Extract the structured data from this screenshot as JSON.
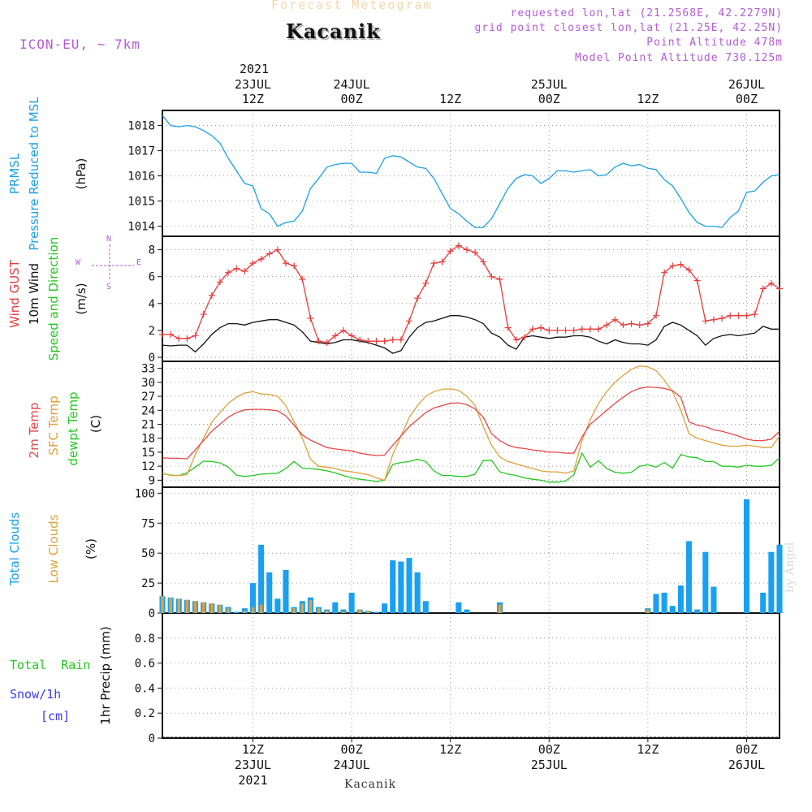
{
  "header": {
    "forecast_label": "Forecast Meteogram",
    "location_title": "Kacanik",
    "model_label": "ICON-EU, ~ 7km",
    "requested": "requested lon,lat (21.2568E, 42.2279N)",
    "grid_point": "grid point closest lon,lat (21.25E, 42.25N)",
    "point_altitude": "Point Altitude 478m",
    "model_altitude": "Model Point Altitude 730.125m"
  },
  "time_axis": {
    "top_year": "2021",
    "labels": [
      {
        "t": 12,
        "top": "23JUL",
        "hour": "12Z",
        "bottom": "23JUL",
        "year": "2021"
      },
      {
        "t": 24,
        "top": "24JUL",
        "hour": "00Z",
        "bottom": "24JUL"
      },
      {
        "t": 36,
        "top": "",
        "hour": "12Z",
        "bottom": ""
      },
      {
        "t": 48,
        "top": "25JUL",
        "hour": "00Z",
        "bottom": "25JUL"
      },
      {
        "t": 60,
        "top": "",
        "hour": "12Z",
        "bottom": ""
      },
      {
        "t": 72,
        "top": "26JUL",
        "hour": "00Z",
        "bottom": "26JUL"
      }
    ],
    "range_hours": [
      1,
      76
    ]
  },
  "footer_location": "Kacanik",
  "byline": "by Angel",
  "colors": {
    "pressure": "#1aa0e6",
    "gust": "#e83c3c",
    "wind": "#111111",
    "temp2m": "#e84848",
    "sfc": "#e0a038",
    "dew": "#22c81e",
    "total_clouds": "#1aa0f0",
    "low_clouds": "#e0a038",
    "rain": "#22c81e",
    "snow": "#3b3bf0",
    "compass": "#b45ad8"
  },
  "chart_data": [
    {
      "type": "line",
      "panel": "pressure",
      "labels": {
        "l1": "PRMSL",
        "l2": "Pressure Reduced to MSL",
        "unit": "(hPa)"
      },
      "ylim": [
        1013.6,
        1018.6
      ],
      "yticks": [
        1014,
        1015,
        1016,
        1017,
        1018
      ],
      "grid": true,
      "x": [
        1,
        2,
        3,
        4,
        5,
        6,
        7,
        8,
        9,
        10,
        11,
        12,
        13,
        14,
        15,
        16,
        17,
        18,
        19,
        20,
        21,
        22,
        23,
        24,
        25,
        26,
        27,
        28,
        29,
        30,
        31,
        32,
        33,
        34,
        35,
        36,
        37,
        38,
        39,
        40,
        41,
        42,
        43,
        44,
        45,
        46,
        47,
        48,
        49,
        50,
        51,
        52,
        53,
        54,
        55,
        56,
        57,
        58,
        59,
        60,
        61,
        62,
        63,
        64,
        65,
        66,
        67,
        68,
        69,
        70,
        71,
        72,
        73,
        74,
        75,
        76
      ],
      "series": [
        {
          "name": "PRMSL",
          "values": [
            1018.4,
            1018.0,
            1017.95,
            1018.0,
            1017.95,
            1017.8,
            1017.6,
            1017.3,
            1016.7,
            1016.2,
            1015.7,
            1015.6,
            1014.7,
            1014.5,
            1014.0,
            1014.15,
            1014.2,
            1014.6,
            1015.5,
            1015.9,
            1016.35,
            1016.45,
            1016.5,
            1016.5,
            1016.15,
            1016.15,
            1016.1,
            1016.7,
            1016.8,
            1016.75,
            1016.55,
            1016.35,
            1016.3,
            1015.9,
            1015.3,
            1014.7,
            1014.5,
            1014.2,
            1013.95,
            1013.95,
            1014.3,
            1014.9,
            1015.5,
            1015.9,
            1016.05,
            1016.0,
            1015.7,
            1015.9,
            1016.2,
            1016.2,
            1016.15,
            1016.2,
            1016.25,
            1016.0,
            1016.05,
            1016.35,
            1016.5,
            1016.4,
            1016.45,
            1016.3,
            1016.25,
            1015.85,
            1015.6,
            1015.1,
            1014.55,
            1014.15,
            1014.0,
            1014.0,
            1013.95,
            1014.35,
            1014.6,
            1015.35,
            1015.4,
            1015.75,
            1016.0,
            1016.05
          ]
        }
      ]
    },
    {
      "type": "line",
      "panel": "wind",
      "labels": {
        "gust": "Wind GUST",
        "wind": "10m Wind",
        "dir": "Speed and Direction",
        "unit": "(m/s)"
      },
      "compass": {
        "n": "N",
        "s": "S",
        "w": "W",
        "e": "E"
      },
      "ylim": [
        -0.3,
        9
      ],
      "yticks": [
        0,
        2,
        4,
        6,
        8
      ],
      "grid": true,
      "x": [
        1,
        2,
        3,
        4,
        5,
        6,
        7,
        8,
        9,
        10,
        11,
        12,
        13,
        14,
        15,
        16,
        17,
        18,
        19,
        20,
        21,
        22,
        23,
        24,
        25,
        26,
        27,
        28,
        29,
        30,
        31,
        32,
        33,
        34,
        35,
        36,
        37,
        38,
        39,
        40,
        41,
        42,
        43,
        44,
        45,
        46,
        47,
        48,
        49,
        50,
        51,
        52,
        53,
        54,
        55,
        56,
        57,
        58,
        59,
        60,
        61,
        62,
        63,
        64,
        65,
        66,
        67,
        68,
        69,
        70,
        71,
        72,
        73,
        74,
        75,
        76
      ],
      "series": [
        {
          "name": "Wind GUST",
          "values": [
            1.7,
            1.7,
            1.4,
            1.4,
            1.6,
            3.2,
            4.6,
            5.6,
            6.3,
            6.6,
            6.4,
            7.0,
            7.3,
            7.7,
            8.0,
            7.0,
            6.8,
            5.8,
            2.9,
            1.2,
            1.1,
            1.6,
            2.0,
            1.6,
            1.3,
            1.2,
            1.2,
            1.2,
            1.3,
            1.3,
            2.7,
            4.4,
            5.5,
            7.0,
            7.1,
            7.9,
            8.3,
            8.0,
            7.8,
            7.1,
            6.0,
            5.8,
            2.2,
            1.3,
            1.5,
            2.1,
            2.2,
            2.0,
            2.0,
            2.0,
            2.0,
            2.1,
            2.1,
            2.1,
            2.4,
            2.8,
            2.4,
            2.5,
            2.4,
            2.5,
            3.1,
            6.3,
            6.8,
            6.9,
            6.5,
            5.7,
            2.7,
            2.8,
            2.9,
            3.1,
            3.1,
            3.1,
            3.2,
            5.1,
            5.5,
            5.1
          ]
        },
        {
          "name": "10m Wind",
          "values": [
            0.9,
            0.85,
            0.9,
            0.9,
            0.4,
            1.0,
            1.7,
            2.2,
            2.5,
            2.5,
            2.4,
            2.6,
            2.7,
            2.8,
            2.8,
            2.6,
            2.4,
            1.9,
            1.2,
            1.1,
            1.0,
            1.1,
            1.3,
            1.3,
            1.2,
            1.1,
            0.9,
            0.7,
            0.3,
            0.5,
            1.5,
            2.2,
            2.6,
            2.7,
            2.9,
            3.1,
            3.1,
            3.0,
            2.8,
            2.5,
            1.8,
            1.5,
            0.9,
            0.6,
            1.5,
            1.6,
            1.5,
            1.4,
            1.5,
            1.5,
            1.6,
            1.6,
            1.5,
            1.2,
            1.0,
            1.3,
            1.1,
            1.0,
            1.0,
            0.9,
            1.3,
            2.3,
            2.6,
            2.4,
            2.0,
            1.6,
            0.9,
            1.4,
            1.6,
            1.7,
            1.6,
            1.7,
            1.8,
            2.3,
            2.1,
            2.1
          ]
        }
      ]
    },
    {
      "type": "line",
      "panel": "temperature",
      "labels": {
        "t2m": "2m Temp",
        "sfc": "SFC Temp",
        "dew": "dewpt Temp",
        "unit": "(C)"
      },
      "ylim": [
        7.5,
        34.5
      ],
      "yticks": [
        9,
        12,
        15,
        18,
        21,
        24,
        27,
        30,
        33
      ],
      "grid": true,
      "x": [
        1,
        2,
        3,
        4,
        5,
        6,
        7,
        8,
        9,
        10,
        11,
        12,
        13,
        14,
        15,
        16,
        17,
        18,
        19,
        20,
        21,
        22,
        23,
        24,
        25,
        26,
        27,
        28,
        29,
        30,
        31,
        32,
        33,
        34,
        35,
        36,
        37,
        38,
        39,
        40,
        41,
        42,
        43,
        44,
        45,
        46,
        47,
        48,
        49,
        50,
        51,
        52,
        53,
        54,
        55,
        56,
        57,
        58,
        59,
        60,
        61,
        62,
        63,
        64,
        65,
        66,
        67,
        68,
        69,
        70,
        71,
        72,
        73,
        74,
        75,
        76
      ],
      "series": [
        {
          "name": "2m Temp",
          "values": [
            13.8,
            13.7,
            13.7,
            13.6,
            15.5,
            17.5,
            19.5,
            21.0,
            22.5,
            23.5,
            24.1,
            24.2,
            24.2,
            24.1,
            23.9,
            22.8,
            20.8,
            18.7,
            17.6,
            16.8,
            16.0,
            15.7,
            15.5,
            15.3,
            14.8,
            14.5,
            14.3,
            14.4,
            16.5,
            18.5,
            20.5,
            22.0,
            23.5,
            24.5,
            25.0,
            25.5,
            25.6,
            25.2,
            24.3,
            22.5,
            19.0,
            17.5,
            16.5,
            16.0,
            15.8,
            15.5,
            15.3,
            15.0,
            15.0,
            14.8,
            14.8,
            18.3,
            21.0,
            22.5,
            24.0,
            25.5,
            26.8,
            28.0,
            28.7,
            29.0,
            28.9,
            28.7,
            28.2,
            26.8,
            21.5,
            20.8,
            20.5,
            19.8,
            19.5,
            19.0,
            18.5,
            17.8,
            17.5,
            17.5,
            17.8,
            19.5
          ]
        },
        {
          "name": "SFC Temp",
          "values": [
            10.5,
            10.0,
            10.0,
            10.2,
            14.5,
            18.0,
            21.5,
            23.5,
            25.5,
            26.8,
            27.7,
            28.0,
            27.5,
            27.4,
            27.0,
            25.0,
            21.5,
            18.0,
            13.5,
            12.0,
            11.8,
            11.5,
            11.0,
            10.8,
            10.5,
            10.2,
            9.5,
            9.0,
            14.5,
            18.5,
            22.5,
            25.0,
            27.0,
            28.0,
            28.5,
            28.6,
            28.3,
            27.0,
            25.0,
            20.5,
            16.5,
            14.0,
            13.0,
            12.5,
            12.0,
            11.5,
            11.0,
            10.8,
            10.8,
            10.5,
            11.0,
            17.5,
            22.0,
            25.5,
            28.0,
            30.0,
            31.5,
            32.8,
            33.5,
            33.3,
            32.5,
            30.5,
            28.0,
            24.0,
            19.0,
            18.0,
            17.5,
            17.0,
            16.5,
            16.3,
            16.3,
            16.5,
            16.3,
            16.0,
            16.0,
            18.5
          ]
        },
        {
          "name": "dewpt Temp",
          "values": [
            10.4,
            10.1,
            10.0,
            10.6,
            11.8,
            13.1,
            13.0,
            12.7,
            11.8,
            10.1,
            9.8,
            10.0,
            10.3,
            10.4,
            10.5,
            11.5,
            13.0,
            11.6,
            11.5,
            11.3,
            11.0,
            10.6,
            10.0,
            9.5,
            9.2,
            9.0,
            8.7,
            9.0,
            12.4,
            12.8,
            13.0,
            13.5,
            13.0,
            11.0,
            10.0,
            10.0,
            9.8,
            9.8,
            10.3,
            13.2,
            13.3,
            10.8,
            10.3,
            10.0,
            9.5,
            9.2,
            9.0,
            8.6,
            8.6,
            8.8,
            10.2,
            14.8,
            11.8,
            13.2,
            11.5,
            10.7,
            10.5,
            10.7,
            12.0,
            12.3,
            11.8,
            12.8,
            11.6,
            14.5,
            14.0,
            13.8,
            13.0,
            13.0,
            12.0,
            12.0,
            11.8,
            12.2,
            12.0,
            12.0,
            12.2,
            13.8
          ]
        }
      ]
    },
    {
      "type": "bar",
      "panel": "clouds",
      "labels": {
        "total": "Total Clouds",
        "low": "Low Clouds",
        "unit": "(%)"
      },
      "ylim": [
        0,
        105
      ],
      "yticks": [
        0,
        25,
        50,
        75,
        100
      ],
      "grid": true,
      "x": [
        1,
        2,
        3,
        4,
        5,
        6,
        7,
        8,
        9,
        10,
        11,
        12,
        13,
        14,
        15,
        16,
        17,
        18,
        19,
        20,
        21,
        22,
        23,
        24,
        25,
        26,
        27,
        28,
        29,
        30,
        31,
        32,
        33,
        34,
        35,
        36,
        37,
        38,
        39,
        40,
        41,
        42,
        43,
        44,
        45,
        46,
        47,
        48,
        49,
        50,
        51,
        52,
        53,
        54,
        55,
        56,
        57,
        58,
        59,
        60,
        61,
        62,
        63,
        64,
        65,
        66,
        67,
        68,
        69,
        70,
        71,
        72,
        73,
        74,
        75,
        76
      ],
      "series": [
        {
          "name": "Total Clouds",
          "values": [
            14,
            13,
            12,
            11,
            10,
            9,
            8,
            7,
            5,
            1,
            4,
            25,
            57,
            34,
            12,
            36,
            5,
            10,
            13,
            5,
            3,
            9,
            3,
            17,
            3,
            2,
            1,
            8,
            44,
            43,
            46,
            34,
            10,
            0,
            0,
            0,
            9,
            3,
            0,
            0,
            0,
            9,
            0,
            0,
            0,
            0,
            0,
            0,
            0,
            0,
            0,
            0,
            0,
            0,
            0,
            0,
            0,
            0,
            0,
            4,
            16,
            17,
            6,
            23,
            60,
            3,
            51,
            22,
            0,
            0,
            0,
            95,
            0,
            17,
            51,
            57
          ]
        },
        {
          "name": "Low Clouds",
          "values": [
            14,
            13,
            12,
            11,
            10,
            9,
            8,
            7,
            4,
            0,
            2,
            5,
            7,
            0,
            0,
            0,
            4,
            8,
            11,
            4,
            2,
            0,
            1,
            0,
            3,
            2,
            0,
            0,
            0,
            0,
            0,
            0,
            0,
            0,
            0,
            0,
            0,
            0,
            0,
            0,
            0,
            7,
            0,
            0,
            0,
            0,
            0,
            0,
            0,
            0,
            0,
            0,
            0,
            0,
            0,
            0,
            0,
            0,
            0,
            3,
            0,
            0,
            0,
            0,
            0,
            0,
            0,
            0,
            0,
            0,
            0,
            0,
            0,
            0,
            0,
            0
          ]
        }
      ]
    },
    {
      "type": "bar",
      "panel": "precip",
      "labels": {
        "rain_a": "Total",
        "rain_b": "Rain",
        "snow": "Snow/1h",
        "snow_unit": "[cm]",
        "unit": "1hr Precip (mm)"
      },
      "ylim": [
        0,
        1
      ],
      "yticks": [
        0,
        0.2,
        0.4,
        0.6,
        0.8
      ],
      "grid": true,
      "values": []
    }
  ]
}
